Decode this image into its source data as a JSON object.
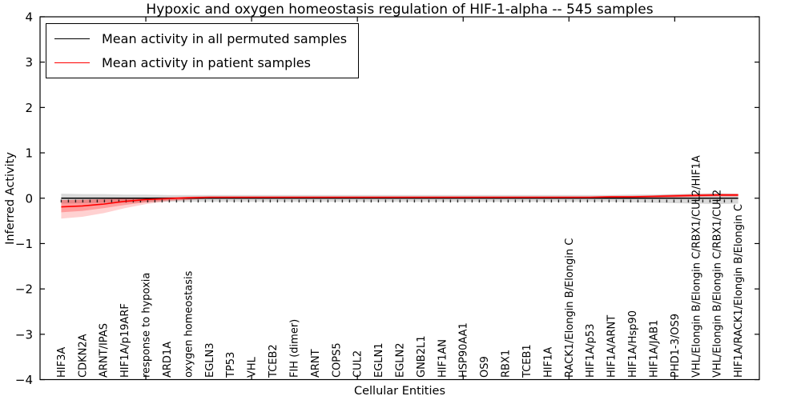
{
  "chart_data": {
    "type": "line",
    "title": "Hypoxic and oxygen homeostasis regulation of HIF-1-alpha -- 545 samples",
    "xlabel": "Cellular Entities",
    "ylabel": "Inferred Activity",
    "ylim": [
      -4,
      4
    ],
    "yticks": [
      -4,
      -3,
      -2,
      -1,
      0,
      1,
      2,
      3,
      4
    ],
    "x_major_ticks": [
      5,
      10,
      15,
      20,
      25,
      30
    ],
    "grid": false,
    "legend_position": "upper-left",
    "background_color": "#ffffff",
    "categories": [
      "HIF3A",
      "CDKN2A",
      "ARNT/IPAS",
      "HIF1A/p19ARF",
      "response to hypoxia",
      "ARD1A",
      "oxygen homeostasis",
      "EGLN3",
      "TP53",
      "VHL",
      "TCEB2",
      "FIH (dimer)",
      "ARNT",
      "COPS5",
      "CUL2",
      "EGLN1",
      "EGLN2",
      "GNB2L1",
      "HIF1AN",
      "HSP90AA1",
      "OS9",
      "RBX1",
      "TCEB1",
      "HIF1A",
      "RACK1/Elongin B/Elongin C",
      "HIF1A/p53",
      "HIF1A/ARNT",
      "HIF1A/Hsp90",
      "HIF1A/JAB1",
      "PHD1-3/OS9",
      "VHL/Elongin B/Elongin C/RBX1/CUL2/HIF1A",
      "VHL/Elongin B/Elongin C/RBX1/CUL2",
      "HIF1A/RACK1/Elongin B/Elongin C"
    ],
    "series": [
      {
        "name": "Mean activity in all permuted samples",
        "color": "#000000",
        "band_color": "rgba(0,0,0,0.15)",
        "values": [
          0,
          0,
          0,
          0,
          0,
          0,
          0,
          0,
          0,
          0,
          0,
          0,
          0,
          0,
          0,
          0,
          0,
          0,
          0,
          0,
          0,
          0,
          0,
          0,
          0,
          0,
          0,
          0,
          0,
          0,
          0,
          0,
          0
        ],
        "band_upper": [
          0.1,
          0.09,
          0.09,
          0.08,
          0.08,
          0.07,
          0.07,
          0.07,
          0.07,
          0.07,
          0.07,
          0.07,
          0.07,
          0.07,
          0.07,
          0.07,
          0.07,
          0.07,
          0.07,
          0.07,
          0.07,
          0.07,
          0.07,
          0.07,
          0.07,
          0.07,
          0.07,
          0.08,
          0.08,
          0.09,
          0.1,
          0.11,
          0.1
        ],
        "band_lower": [
          -0.12,
          -0.11,
          -0.1,
          -0.1,
          -0.09,
          -0.08,
          -0.08,
          -0.08,
          -0.08,
          -0.08,
          -0.08,
          -0.08,
          -0.08,
          -0.08,
          -0.08,
          -0.08,
          -0.08,
          -0.08,
          -0.08,
          -0.08,
          -0.08,
          -0.08,
          -0.08,
          -0.08,
          -0.08,
          -0.08,
          -0.08,
          -0.09,
          -0.1,
          -0.11,
          -0.12,
          -0.13,
          -0.12
        ]
      },
      {
        "name": "Mean activity in patient samples",
        "color": "#ff0000",
        "band_color": "rgba(255,0,0,0.18)",
        "band_inner_color": "rgba(255,0,0,0.25)",
        "values": [
          -0.19,
          -0.17,
          -0.13,
          -0.07,
          -0.03,
          -0.01,
          0.01,
          0.02,
          0.02,
          0.02,
          0.02,
          0.02,
          0.02,
          0.02,
          0.02,
          0.02,
          0.02,
          0.02,
          0.02,
          0.02,
          0.02,
          0.02,
          0.02,
          0.02,
          0.02,
          0.02,
          0.03,
          0.03,
          0.04,
          0.05,
          0.06,
          0.07,
          0.07
        ],
        "band_upper": [
          -0.04,
          -0.03,
          -0.02,
          -0.01,
          0.01,
          0.02,
          0.03,
          0.04,
          0.04,
          0.04,
          0.04,
          0.04,
          0.04,
          0.04,
          0.04,
          0.04,
          0.04,
          0.04,
          0.04,
          0.04,
          0.04,
          0.04,
          0.04,
          0.04,
          0.04,
          0.04,
          0.05,
          0.05,
          0.06,
          0.08,
          0.09,
          0.1,
          0.1
        ],
        "band_lower": [
          -0.45,
          -0.41,
          -0.33,
          -0.22,
          -0.13,
          -0.07,
          -0.04,
          -0.01,
          -0.01,
          -0.01,
          -0.01,
          -0.01,
          -0.01,
          -0.01,
          -0.01,
          -0.01,
          -0.01,
          -0.01,
          -0.01,
          -0.01,
          -0.01,
          -0.01,
          -0.01,
          -0.01,
          -0.01,
          -0.01,
          0.0,
          0.0,
          0.01,
          0.02,
          0.03,
          0.04,
          0.04
        ],
        "band_inner_lower": [
          -0.31,
          -0.28,
          -0.22,
          -0.15,
          -0.09,
          -0.05,
          -0.03,
          -0.01,
          -0.01,
          -0.01,
          -0.01,
          -0.01,
          -0.01,
          -0.01,
          -0.01,
          -0.01,
          -0.01,
          -0.01,
          -0.01,
          -0.01,
          -0.01,
          -0.01,
          -0.01,
          -0.01,
          -0.01,
          -0.01,
          0.0,
          0.0,
          0.01,
          0.02,
          0.03,
          0.04,
          0.04
        ]
      }
    ],
    "dash_marker_row": {
      "y_top": -0.03,
      "y_bottom": -0.095,
      "spacing_px": 9,
      "color": "#000000"
    }
  }
}
